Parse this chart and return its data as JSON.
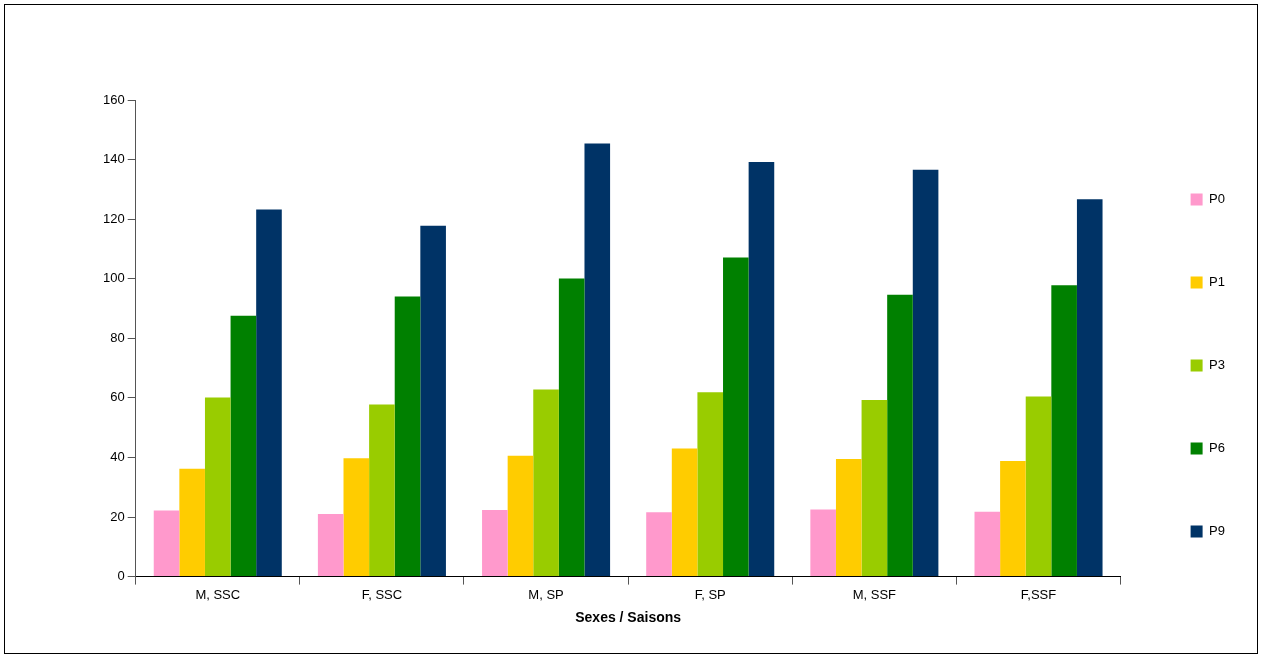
{
  "chart_data": {
    "type": "bar",
    "xlabel": "Sexes / Saisons",
    "categories": [
      "M, SSC",
      "F, SSC",
      "M, SP",
      "F, SP",
      "M, SSF",
      "F,SSF"
    ],
    "series": [
      {
        "name": "P0",
        "color": "#ff99cc",
        "values": [
          22.2,
          21,
          22.4,
          21.6,
          22.5,
          21.8
        ]
      },
      {
        "name": "P1",
        "color": "#ffcc00",
        "values": [
          36.2,
          39.7,
          40.6,
          43,
          39.5,
          38.8
        ]
      },
      {
        "name": "P3",
        "color": "#99cc00",
        "values": [
          60.1,
          57.8,
          62.8,
          61.9,
          59.3,
          60.5
        ]
      },
      {
        "name": "P6",
        "color": "#008000",
        "values": [
          87.6,
          94,
          100.1,
          107.1,
          94.6,
          97.8
        ]
      },
      {
        "name": "P9",
        "color": "#003366",
        "values": [
          123.2,
          117.8,
          145.4,
          139.2,
          136.6,
          126.7
        ]
      }
    ],
    "ylim": [
      0,
      160
    ],
    "yticks": [
      0,
      20,
      40,
      60,
      80,
      100,
      120,
      140,
      160
    ],
    "grid": false,
    "legend": "right"
  }
}
